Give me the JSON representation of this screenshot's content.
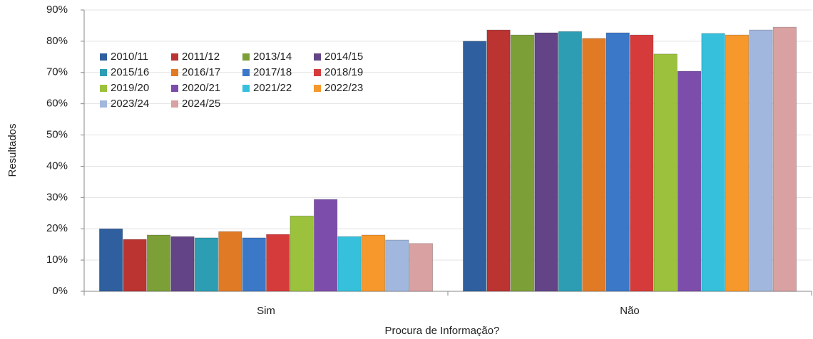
{
  "chart_data": {
    "type": "bar",
    "x_label": "Procura de Informação?",
    "y_label": "Resultados",
    "categories": [
      "Sim",
      "Não"
    ],
    "series": [
      {
        "name": "2010/11",
        "color": "#2f5f9e",
        "values": [
          20.0,
          80.0
        ]
      },
      {
        "name": "2011/12",
        "color": "#bb3431",
        "values": [
          16.6,
          83.6
        ]
      },
      {
        "name": "2013/14",
        "color": "#7c9f38",
        "values": [
          18.0,
          82.0
        ]
      },
      {
        "name": "2014/15",
        "color": "#634487",
        "values": [
          17.5,
          82.7
        ]
      },
      {
        "name": "2015/16",
        "color": "#2c9db3",
        "values": [
          17.1,
          83.1
        ]
      },
      {
        "name": "2016/17",
        "color": "#e07a25",
        "values": [
          19.1,
          80.9
        ]
      },
      {
        "name": "2017/18",
        "color": "#3b78c8",
        "values": [
          17.1,
          82.7
        ]
      },
      {
        "name": "2018/19",
        "color": "#d63b3b",
        "values": [
          18.2,
          82.0
        ]
      },
      {
        "name": "2019/20",
        "color": "#9cc23d",
        "values": [
          24.1,
          75.9
        ]
      },
      {
        "name": "2020/21",
        "color": "#7c4dab",
        "values": [
          29.4,
          70.4
        ]
      },
      {
        "name": "2021/22",
        "color": "#36c0dc",
        "values": [
          17.5,
          82.5
        ]
      },
      {
        "name": "2022/23",
        "color": "#f6982b",
        "values": [
          18.0,
          82.0
        ]
      },
      {
        "name": "2023/24",
        "color": "#a2b7dd",
        "values": [
          16.4,
          83.6
        ]
      },
      {
        "name": "2024/25",
        "color": "#d9a1a1",
        "values": [
          15.3,
          84.5
        ]
      }
    ],
    "ylim": [
      0,
      90
    ],
    "yticks": [
      {
        "value": 0,
        "label": "0%"
      },
      {
        "value": 10,
        "label": "10%"
      },
      {
        "value": 20,
        "label": "20%"
      },
      {
        "value": 30,
        "label": "30%"
      },
      {
        "value": 40,
        "label": "40%"
      },
      {
        "value": 50,
        "label": "50%"
      },
      {
        "value": 60,
        "label": "60%"
      },
      {
        "value": 70,
        "label": "70%"
      },
      {
        "value": 80,
        "label": "80%"
      },
      {
        "value": 90,
        "label": "90%"
      }
    ],
    "grid": true,
    "legend": "upper left"
  }
}
